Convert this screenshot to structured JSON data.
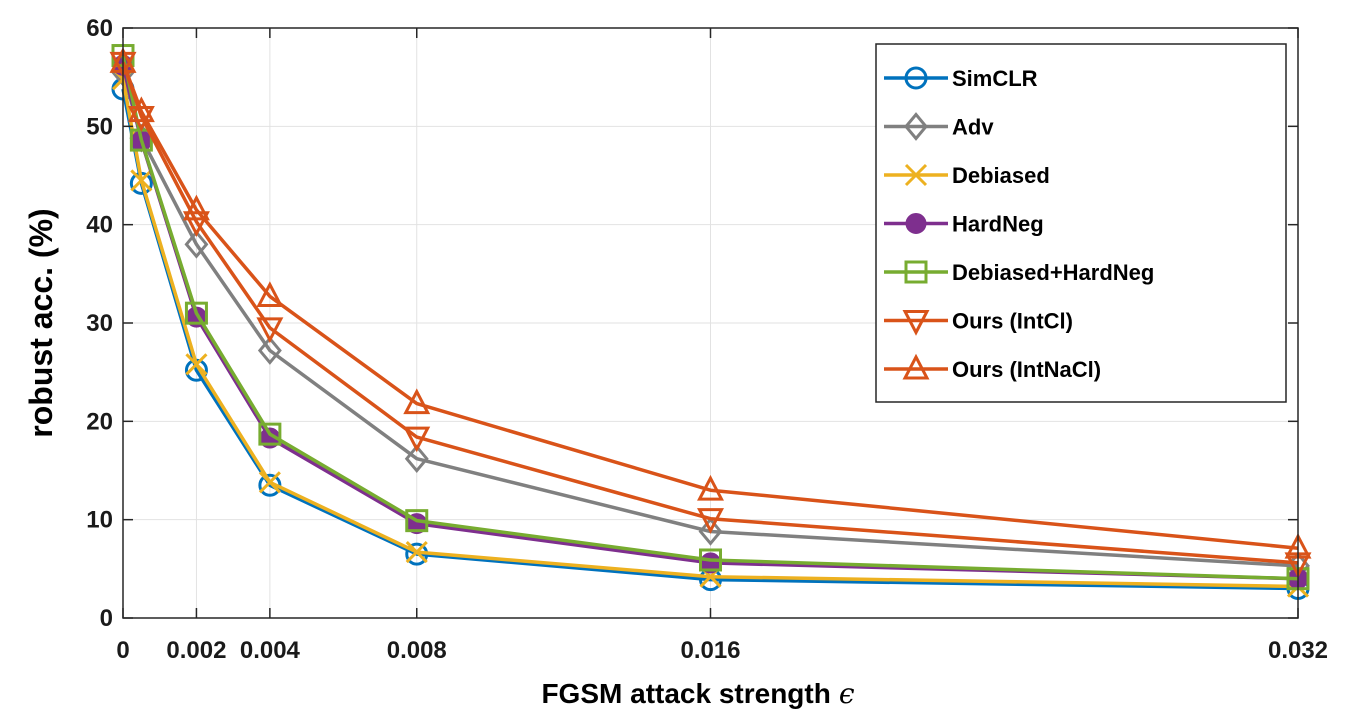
{
  "chart_data": {
    "type": "line",
    "xlabel": "FGSM attack strength",
    "xlabel_symbol": "ϵ",
    "ylabel": "robust acc. (%)",
    "xlim": [
      0,
      0.032
    ],
    "ylim": [
      0,
      60
    ],
    "x_ticks": [
      0,
      0.002,
      0.004,
      0.008,
      0.016,
      0.032
    ],
    "x_tick_labels": [
      "0",
      "0.002",
      "0.004",
      "0.008",
      "0.016",
      "0.032"
    ],
    "y_ticks": [
      0,
      10,
      20,
      30,
      40,
      50,
      60
    ],
    "y_tick_labels": [
      "0",
      "10",
      "20",
      "30",
      "40",
      "50",
      "60"
    ],
    "grid": true,
    "legend_position": "top-right",
    "x": [
      0,
      0.0005,
      0.002,
      0.004,
      0.008,
      0.016,
      0.032
    ],
    "series": [
      {
        "name": "SimCLR",
        "color": "#0072BD",
        "marker": "circle",
        "values": [
          53.8,
          44.2,
          25.2,
          13.5,
          6.5,
          3.9,
          3.0
        ]
      },
      {
        "name": "Adv",
        "color": "#808080",
        "marker": "diamond",
        "values": [
          55.5,
          48.8,
          38.0,
          27.2,
          16.2,
          8.8,
          5.3
        ]
      },
      {
        "name": "Debiased",
        "color": "#EDB120",
        "marker": "x",
        "values": [
          54.8,
          44.5,
          25.8,
          13.8,
          6.7,
          4.2,
          3.2
        ]
      },
      {
        "name": "HardNeg",
        "color": "#7E2F8E",
        "marker": "filled-circle",
        "values": [
          56.2,
          48.5,
          30.6,
          18.3,
          9.6,
          5.6,
          4.0
        ]
      },
      {
        "name": "Debiased+HardNeg",
        "color": "#77AC30",
        "marker": "square",
        "values": [
          57.2,
          48.6,
          31.0,
          18.7,
          9.9,
          5.9,
          4.0
        ]
      },
      {
        "name": "Ours (IntCl)",
        "color": "#D95319",
        "marker": "triangle-down",
        "values": [
          56.5,
          51.0,
          40.3,
          29.5,
          18.4,
          10.1,
          5.6
        ]
      },
      {
        "name": "Ours (IntNaCl)",
        "color": "#D95319",
        "marker": "triangle-up",
        "values": [
          56.5,
          51.5,
          41.5,
          32.7,
          21.8,
          13.0,
          7.1
        ]
      }
    ]
  }
}
